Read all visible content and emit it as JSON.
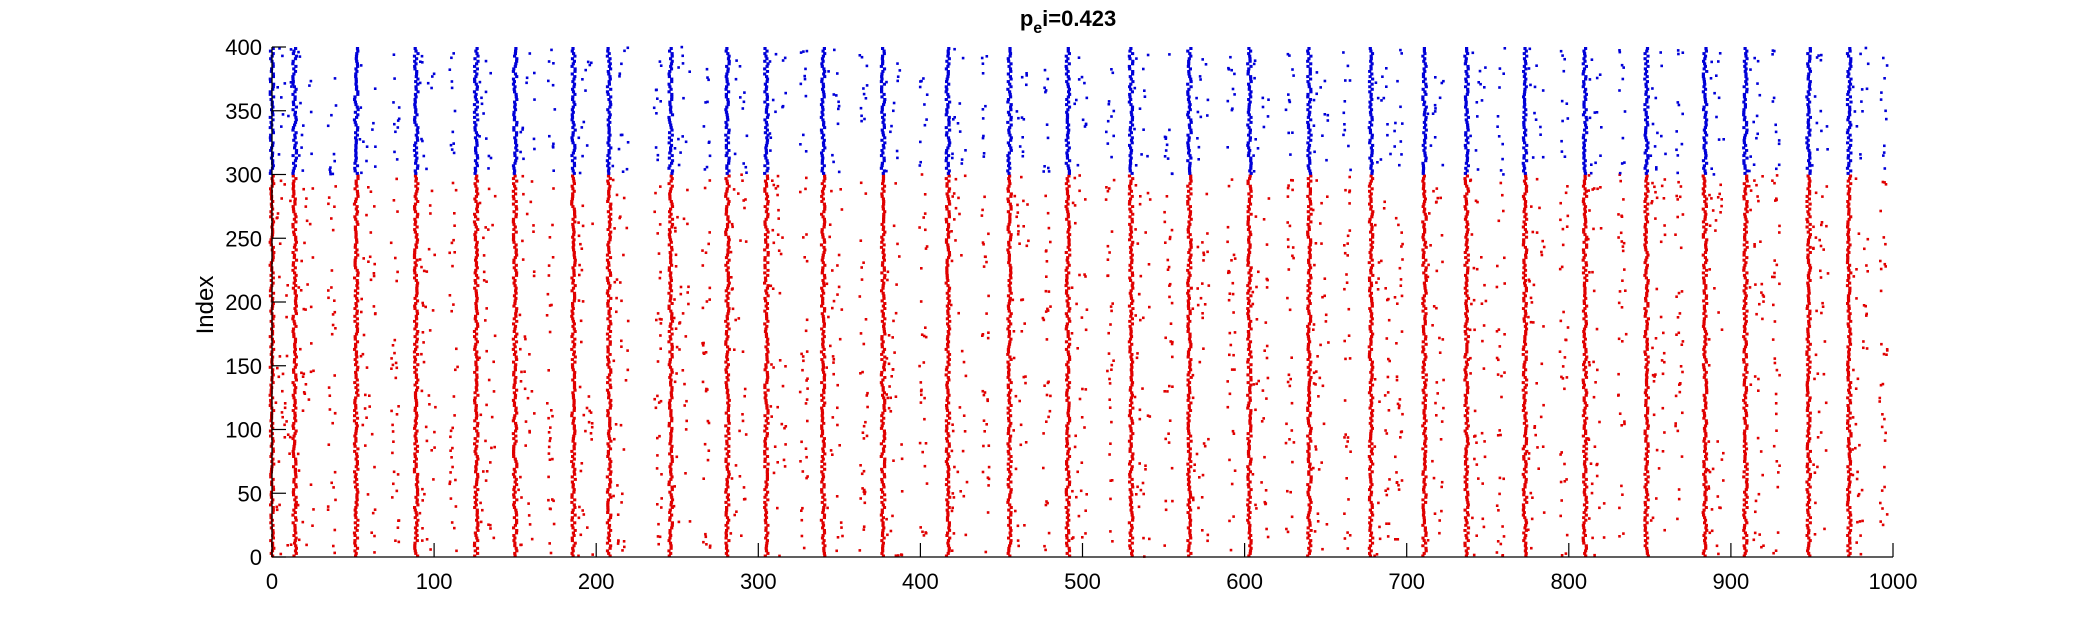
{
  "chart_data": {
    "type": "scatter",
    "title": "p",
    "title_subscript": "e",
    "title_suffix": "i=0.423",
    "xlabel": "",
    "ylabel": "Index",
    "xlim": [
      0,
      1000
    ],
    "ylim": [
      0,
      400
    ],
    "xticks": [
      0,
      100,
      200,
      300,
      400,
      500,
      600,
      700,
      800,
      900,
      1000
    ],
    "yticks": [
      0,
      50,
      100,
      150,
      200,
      250,
      300,
      350,
      400
    ],
    "grid": false,
    "legend": "none",
    "colors": {
      "excitatory": "#e00000",
      "inhibitory": "#0000d8",
      "axis": "#000000"
    },
    "series": [
      {
        "index_range": [
          0,
          300
        ],
        "color": "#e00000",
        "description_of_pattern": "population bursts (dense vertical bands of spikes across all indices) at the listed times, with sparse scattered spikes in between",
        "burst_times": [
          0,
          14,
          52,
          89,
          126,
          150,
          186,
          208,
          246,
          281,
          305,
          340,
          377,
          417,
          455,
          491,
          530,
          566,
          603,
          640,
          678,
          711,
          737,
          773,
          810,
          848,
          884,
          909,
          948,
          973
        ],
        "sparse_columns": [
          37,
          76,
          112,
          172,
          238,
          268,
          328,
          365,
          402,
          440,
          478,
          517,
          553,
          592,
          628,
          663,
          695,
          758,
          797,
          833,
          868,
          928,
          994
        ]
      },
      {
        "index_range": [
          300,
          400
        ],
        "color": "#0000d8",
        "description_of_pattern": "inhibitory population fires dense bands at the same burst times, plus scattered spikes around them",
        "burst_times": [
          0,
          14,
          52,
          89,
          126,
          150,
          186,
          208,
          246,
          281,
          305,
          340,
          377,
          417,
          455,
          491,
          530,
          566,
          603,
          640,
          678,
          711,
          737,
          773,
          810,
          848,
          884,
          909,
          948,
          973
        ],
        "sparse_columns": [
          37,
          76,
          112,
          172,
          238,
          268,
          328,
          365,
          402,
          440,
          478,
          517,
          553,
          592,
          628,
          663,
          695,
          758,
          797,
          833,
          868,
          928,
          994
        ]
      }
    ]
  }
}
